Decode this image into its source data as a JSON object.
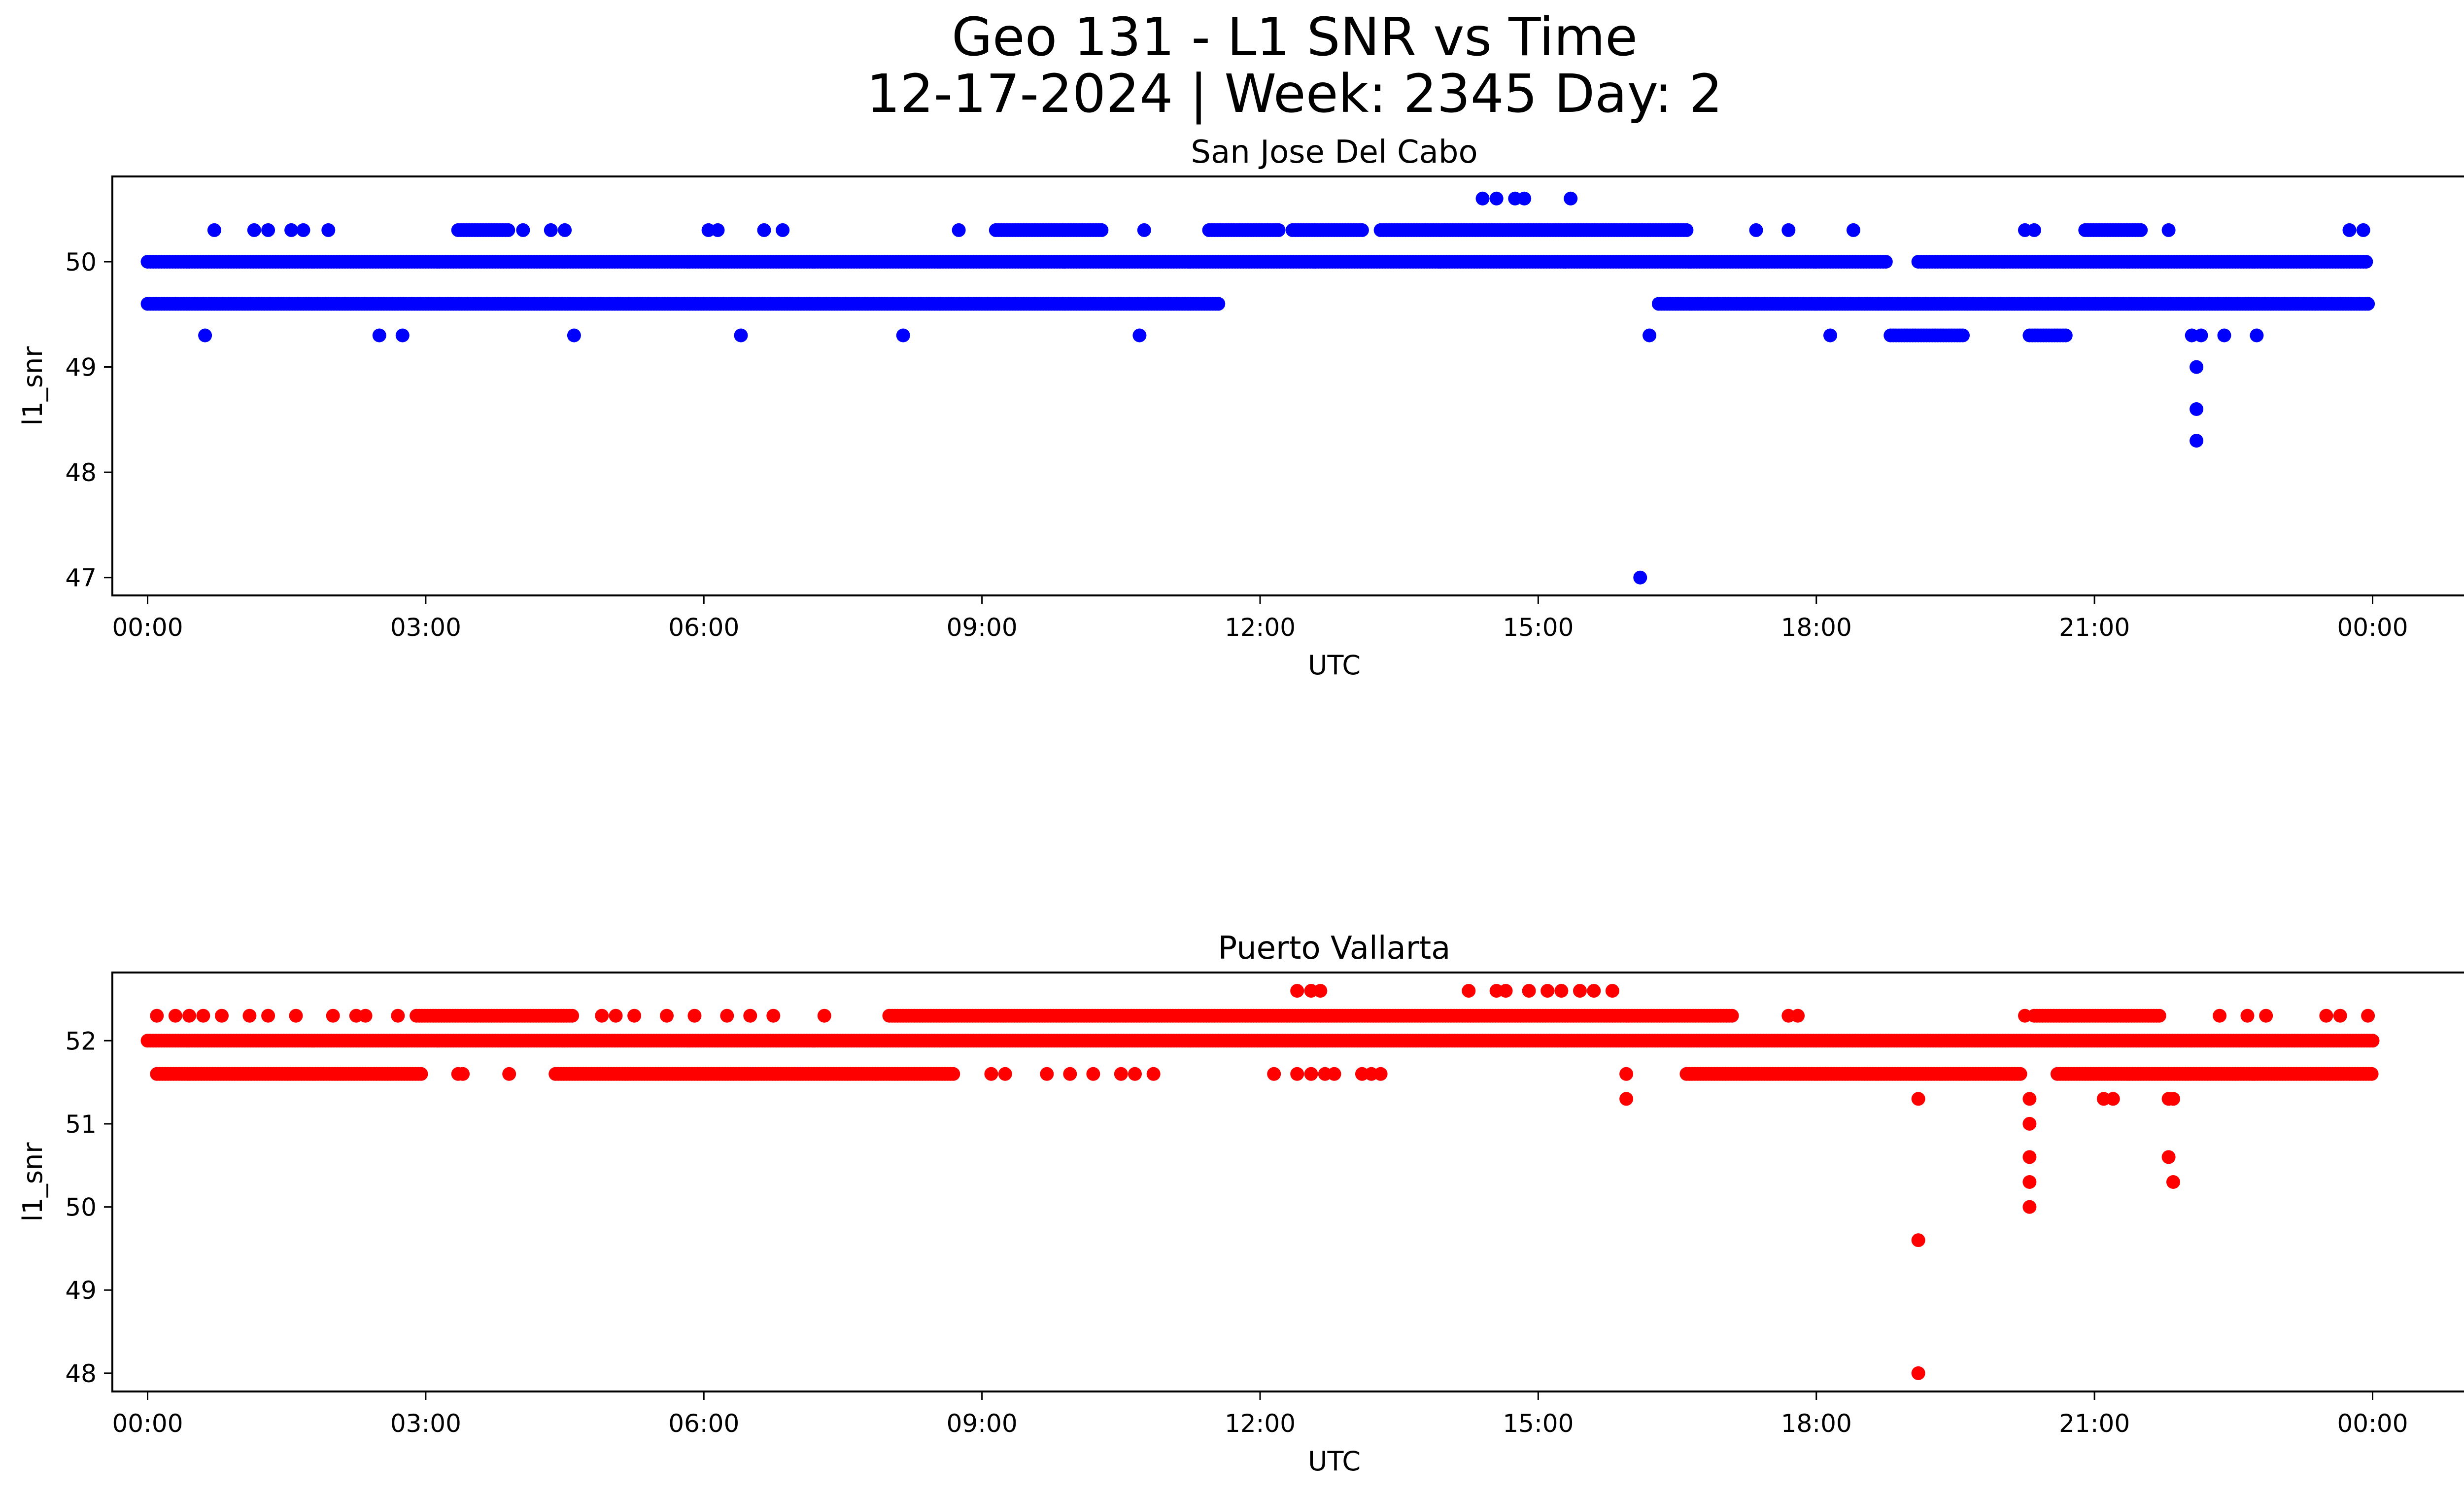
{
  "title_line1": "Geo 131 - L1 SNR vs Time",
  "title_line2": "12-17-2024 | Week: 2345 Day: 2",
  "colors": {
    "blue": "#0000ff",
    "red": "#ff0000"
  },
  "chart_data": [
    {
      "type": "scatter",
      "title": "San Jose Del Cabo",
      "xlabel": "UTC",
      "ylabel": "l1_snr",
      "xlim": [
        -0.38,
        25.98
      ],
      "ylim": [
        46.83,
        50.81
      ],
      "xticks": [
        0,
        3,
        6,
        9,
        12,
        15,
        18,
        21,
        24
      ],
      "xtick_labels": [
        "00:00",
        "03:00",
        "06:00",
        "09:00",
        "12:00",
        "15:00",
        "18:00",
        "21:00",
        "00:00"
      ],
      "yticks": [
        47,
        48,
        49,
        50
      ],
      "ytick_labels": [
        "47",
        "48",
        "49",
        "50"
      ],
      "color": "blue",
      "series": [
        {
          "name": "l1_snr @50.0",
          "y": 50.0,
          "ranges": [
            [
              0.0,
              18.75
            ],
            [
              19.1,
              23.95
            ]
          ]
        },
        {
          "name": "l1_snr @49.6",
          "y": 49.6,
          "ranges": [
            [
              0.0,
              11.55
            ],
            [
              16.3,
              23.95
            ]
          ]
        },
        {
          "name": "l1_snr @50.3",
          "y": 50.3,
          "ranges": [
            [
              3.35,
              3.9
            ],
            [
              9.15,
              10.3
            ],
            [
              11.45,
              12.2
            ],
            [
              12.35,
              13.1
            ],
            [
              13.3,
              16.6
            ],
            [
              20.9,
              21.5
            ]
          ]
        },
        {
          "name": "l1_snr @49.3",
          "y": 49.3,
          "ranges": [
            [
              18.8,
              19.6
            ],
            [
              20.3,
              20.7
            ]
          ]
        },
        {
          "name": "scattered points",
          "points": [
            [
              0.72,
              50.3
            ],
            [
              1.15,
              50.3
            ],
            [
              1.3,
              50.3
            ],
            [
              1.55,
              50.3
            ],
            [
              1.68,
              50.3
            ],
            [
              1.95,
              50.3
            ],
            [
              4.05,
              50.3
            ],
            [
              4.35,
              50.3
            ],
            [
              4.5,
              50.3
            ],
            [
              6.05,
              50.3
            ],
            [
              6.15,
              50.3
            ],
            [
              6.65,
              50.3
            ],
            [
              6.85,
              50.3
            ],
            [
              8.75,
              50.3
            ],
            [
              10.75,
              50.3
            ],
            [
              17.35,
              50.3
            ],
            [
              17.7,
              50.3
            ],
            [
              18.4,
              50.3
            ],
            [
              20.25,
              50.3
            ],
            [
              20.35,
              50.3
            ],
            [
              21.8,
              50.3
            ],
            [
              23.75,
              50.3
            ],
            [
              23.9,
              50.3
            ],
            [
              14.4,
              50.6
            ],
            [
              14.55,
              50.6
            ],
            [
              14.75,
              50.6
            ],
            [
              14.85,
              50.6
            ],
            [
              15.35,
              50.6
            ],
            [
              0.62,
              49.3
            ],
            [
              2.5,
              49.3
            ],
            [
              2.75,
              49.3
            ],
            [
              4.6,
              49.3
            ],
            [
              6.4,
              49.3
            ],
            [
              8.15,
              49.3
            ],
            [
              10.7,
              49.3
            ],
            [
              16.2,
              49.3
            ],
            [
              18.15,
              49.3
            ],
            [
              22.05,
              49.3
            ],
            [
              22.15,
              49.3
            ],
            [
              22.4,
              49.3
            ],
            [
              22.75,
              49.3
            ],
            [
              22.1,
              49.0
            ],
            [
              22.1,
              48.6
            ],
            [
              22.1,
              48.3
            ],
            [
              16.1,
              47.0
            ]
          ]
        }
      ]
    },
    {
      "type": "scatter",
      "title": "Puerto Vallarta",
      "xlabel": "UTC",
      "ylabel": "l1_snr",
      "xlim": [
        -0.38,
        25.98
      ],
      "ylim": [
        47.78,
        52.82
      ],
      "xticks": [
        0,
        3,
        6,
        9,
        12,
        15,
        18,
        21,
        24
      ],
      "xtick_labels": [
        "00:00",
        "03:00",
        "06:00",
        "09:00",
        "12:00",
        "15:00",
        "18:00",
        "21:00",
        "00:00"
      ],
      "yticks": [
        48,
        49,
        50,
        51,
        52
      ],
      "ytick_labels": [
        "48",
        "49",
        "50",
        "51",
        "52"
      ],
      "color": "red",
      "series": [
        {
          "name": "l1_snr @52.0",
          "y": 52.0,
          "ranges": [
            [
              0.0,
              24.0
            ]
          ]
        },
        {
          "name": "l1_snr @51.6",
          "y": 51.6,
          "ranges": [
            [
              0.1,
              2.95
            ],
            [
              4.4,
              8.7
            ],
            [
              16.6,
              20.2
            ],
            [
              20.6,
              24.0
            ]
          ]
        },
        {
          "name": "l1_snr @52.3",
          "y": 52.3,
          "ranges": [
            [
              2.9,
              4.6
            ],
            [
              8.0,
              17.1
            ],
            [
              20.35,
              21.7
            ]
          ]
        },
        {
          "name": "scattered points",
          "points": [
            [
              0.1,
              52.3
            ],
            [
              0.3,
              52.3
            ],
            [
              0.45,
              52.3
            ],
            [
              0.6,
              52.3
            ],
            [
              0.8,
              52.3
            ],
            [
              1.1,
              52.3
            ],
            [
              1.3,
              52.3
            ],
            [
              1.6,
              52.3
            ],
            [
              2.0,
              52.3
            ],
            [
              2.25,
              52.3
            ],
            [
              2.35,
              52.3
            ],
            [
              2.7,
              52.3
            ],
            [
              4.9,
              52.3
            ],
            [
              5.05,
              52.3
            ],
            [
              5.25,
              52.3
            ],
            [
              5.6,
              52.3
            ],
            [
              5.9,
              52.3
            ],
            [
              6.25,
              52.3
            ],
            [
              6.5,
              52.3
            ],
            [
              6.75,
              52.3
            ],
            [
              7.3,
              52.3
            ],
            [
              17.7,
              52.3
            ],
            [
              17.8,
              52.3
            ],
            [
              20.25,
              52.3
            ],
            [
              22.35,
              52.3
            ],
            [
              22.65,
              52.3
            ],
            [
              22.85,
              52.3
            ],
            [
              23.5,
              52.3
            ],
            [
              23.65,
              52.3
            ],
            [
              23.95,
              52.3
            ],
            [
              12.4,
              52.6
            ],
            [
              12.55,
              52.6
            ],
            [
              12.65,
              52.6
            ],
            [
              14.25,
              52.6
            ],
            [
              14.55,
              52.6
            ],
            [
              14.65,
              52.6
            ],
            [
              14.9,
              52.6
            ],
            [
              15.1,
              52.6
            ],
            [
              15.25,
              52.6
            ],
            [
              15.45,
              52.6
            ],
            [
              15.6,
              52.6
            ],
            [
              15.8,
              52.6
            ],
            [
              3.35,
              51.6
            ],
            [
              3.4,
              51.6
            ],
            [
              3.9,
              51.6
            ],
            [
              9.1,
              51.6
            ],
            [
              9.25,
              51.6
            ],
            [
              9.7,
              51.6
            ],
            [
              9.95,
              51.6
            ],
            [
              10.2,
              51.6
            ],
            [
              10.5,
              51.6
            ],
            [
              10.65,
              51.6
            ],
            [
              10.85,
              51.6
            ],
            [
              12.15,
              51.6
            ],
            [
              12.4,
              51.6
            ],
            [
              12.55,
              51.6
            ],
            [
              12.7,
              51.6
            ],
            [
              12.8,
              51.6
            ],
            [
              13.1,
              51.6
            ],
            [
              13.2,
              51.6
            ],
            [
              13.3,
              51.6
            ],
            [
              15.95,
              51.6
            ],
            [
              15.95,
              51.3
            ],
            [
              19.1,
              51.3
            ],
            [
              20.3,
              51.3
            ],
            [
              21.1,
              51.3
            ],
            [
              21.2,
              51.3
            ],
            [
              21.8,
              51.3
            ],
            [
              21.85,
              51.3
            ],
            [
              20.3,
              51.0
            ],
            [
              20.3,
              50.6
            ],
            [
              20.3,
              50.3
            ],
            [
              20.3,
              50.0
            ],
            [
              21.8,
              50.6
            ],
            [
              21.85,
              50.3
            ],
            [
              19.1,
              49.6
            ],
            [
              19.1,
              48.0
            ]
          ]
        }
      ]
    }
  ]
}
